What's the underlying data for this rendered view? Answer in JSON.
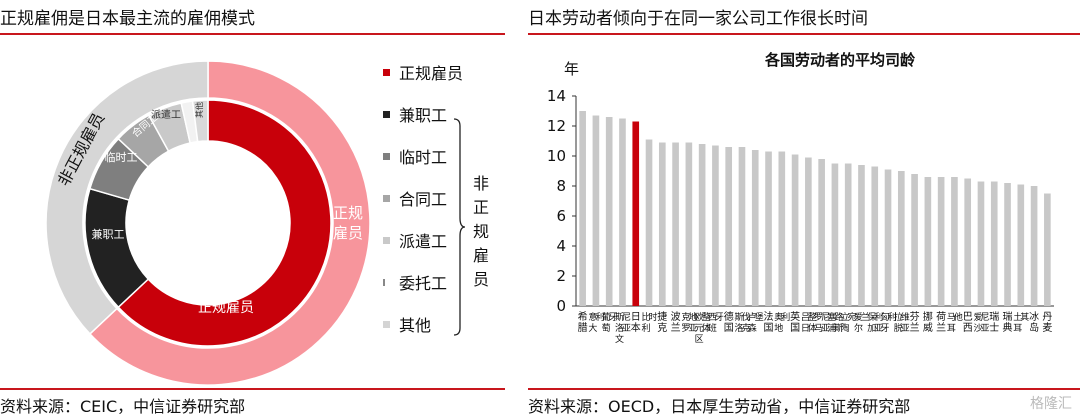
{
  "left": {
    "title": "正规雇佣是日本最主流的雇佣模式",
    "source": "资料来源：CEIC，中信证券研究部",
    "inner_labels": {
      "regular": "正规雇员",
      "part_time": "兼职工",
      "temp": "临时工",
      "contract": "合同工",
      "dispatch": "派遣工"
    },
    "outer_labels": {
      "regular": "正规雇员",
      "non_regular": "非正规雇员"
    },
    "legend": [
      {
        "label": "正规雇员",
        "color": "#c8000a"
      },
      {
        "label": "兼职工",
        "color": "#222222"
      },
      {
        "label": "临时工",
        "color": "#7f7f7f"
      },
      {
        "label": "合同工",
        "color": "#a6a6a6"
      },
      {
        "label": "派遣工",
        "color": "#c9c9c9"
      },
      {
        "label": "委托工",
        "color": "#e6e6e6"
      },
      {
        "label": "其他",
        "color": "#d4d4d4"
      }
    ],
    "brace_label": "非正规雇员"
  },
  "right": {
    "title": "日本劳动者倾向于在同一家公司工作很长时间",
    "source": "资料来源：OECD，日本厚生劳动省，中信证券研究部"
  },
  "watermark": "格隆汇",
  "chart_data": [
    {
      "type": "pie",
      "variant": "nested-donut",
      "inner": {
        "categories": [
          "正规雇员",
          "兼职工",
          "临时工",
          "合同工",
          "派遣工",
          "委托工",
          "其他"
        ],
        "values": [
          63.0,
          16.5,
          7.5,
          5.0,
          4.5,
          1.5,
          2.0
        ],
        "colors": [
          "#c8000a",
          "#222222",
          "#7f7f7f",
          "#a6a6a6",
          "#c9c9c9",
          "#f2f2f2",
          "#d9d9d9"
        ]
      },
      "outer": {
        "categories": [
          "正规雇员",
          "非正规雇员"
        ],
        "values": [
          63.0,
          37.0
        ],
        "colors": [
          "#f7959c",
          "#d6d6d6"
        ]
      },
      "annotations": [
        "其他"
      ]
    },
    {
      "type": "bar",
      "title": "各国劳动者的平均司龄",
      "ylabel": "年",
      "ylim": [
        0,
        14
      ],
      "yticks": [
        0,
        2,
        4,
        6,
        8,
        10,
        12,
        14
      ],
      "grid": false,
      "categories": [
        "希腊",
        "意大利",
        "葡萄牙",
        "斯洛文尼亚",
        "日本",
        "比利时",
        "捷克",
        "波兰",
        "克罗地亚",
        "欧元区整体",
        "西班牙",
        "德国",
        "斯洛伐克",
        "卢森堡",
        "法国",
        "奥地利",
        "英国",
        "吕日整体",
        "罗马尼亚",
        "塞浦路斯",
        "立陶宛",
        "爱尔兰",
        "保加利亚",
        "匈牙利",
        "拉脱维亚",
        "芬兰",
        "挪威",
        "荷兰",
        "马耳他",
        "巴西",
        "爱沙尼亚",
        "瑞士",
        "瑞典",
        "土耳其",
        "冰岛",
        "丹麦"
      ],
      "values": [
        13.0,
        12.7,
        12.6,
        12.5,
        12.3,
        11.1,
        10.9,
        10.9,
        10.9,
        10.8,
        10.7,
        10.6,
        10.6,
        10.4,
        10.3,
        10.3,
        10.1,
        9.9,
        9.8,
        9.5,
        9.5,
        9.4,
        9.3,
        9.1,
        9.0,
        8.8,
        8.6,
        8.6,
        8.6,
        8.5,
        8.3,
        8.3,
        8.2,
        8.1,
        8.0,
        7.5
      ],
      "highlight": {
        "category": "日本",
        "color": "#c8000a"
      },
      "bar_color": "#c8c8c8"
    }
  ]
}
